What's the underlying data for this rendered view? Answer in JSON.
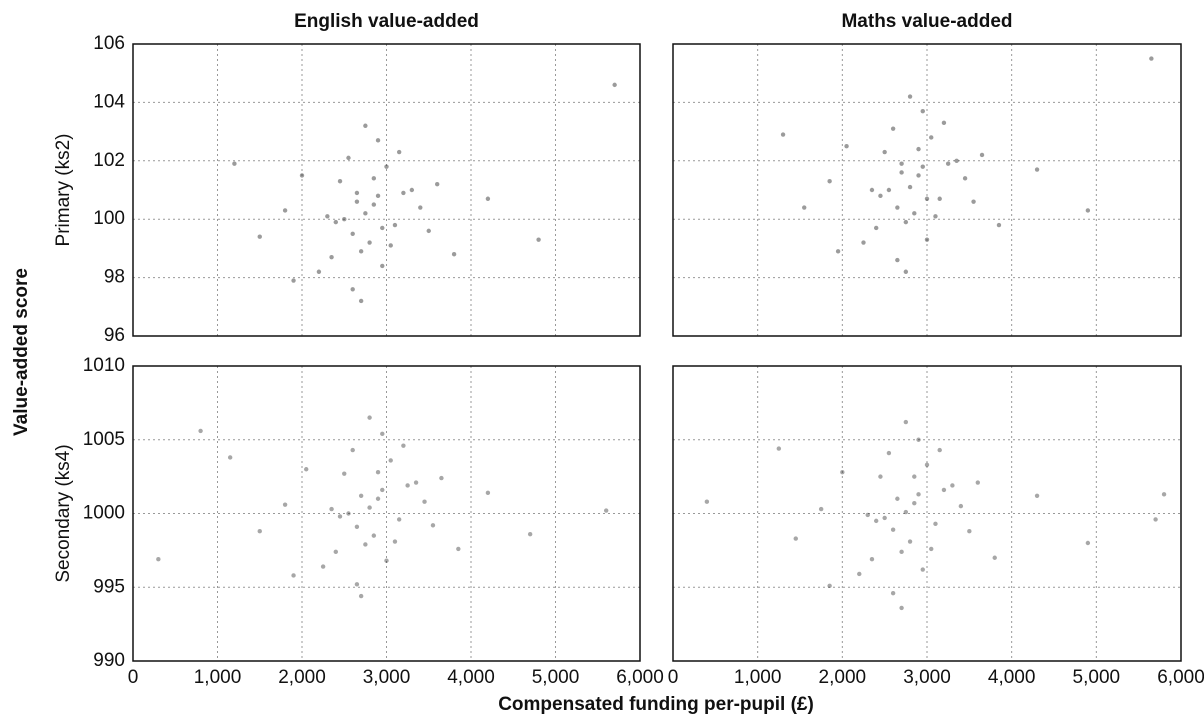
{
  "x_label": "Compensated funding per-pupil (£)",
  "y_label": "Value-added score",
  "chart_data": [
    {
      "type": "scatter",
      "title": "English value-added",
      "ylabel": "Primary (ks2)",
      "color": "#222222",
      "alpha": 0.45,
      "grid": true,
      "xticklabels": false,
      "yticklabels": true,
      "xlim": [
        0,
        6000
      ],
      "ylim": [
        96,
        106
      ],
      "xticks": [
        0,
        1000,
        2000,
        3000,
        4000,
        5000,
        6000
      ],
      "yticks": [
        96,
        98,
        100,
        102,
        104,
        106
      ],
      "x": [
        2750,
        2600,
        2900,
        2450,
        3100,
        2700,
        2850,
        2300,
        3300,
        2550,
        2950,
        2650,
        2800,
        2400,
        3200,
        2000,
        3500,
        1800,
        3800,
        2750,
        2600,
        3000,
        2200,
        3400,
        2900,
        1500,
        4200,
        1200,
        4800,
        5700,
        2700,
        2500,
        3050,
        2350,
        2850,
        3150,
        1900,
        3600,
        2650,
        2950
      ],
      "y": [
        100.2,
        99.5,
        100.8,
        101.3,
        99.8,
        98.9,
        100.5,
        100.1,
        101.0,
        102.1,
        98.4,
        100.6,
        99.2,
        99.9,
        100.9,
        101.5,
        99.6,
        100.3,
        98.8,
        103.2,
        97.6,
        101.8,
        98.2,
        100.4,
        102.7,
        99.4,
        100.7,
        101.9,
        99.3,
        104.6,
        97.2,
        100.0,
        99.1,
        98.7,
        101.4,
        102.3,
        97.9,
        101.2,
        100.9,
        99.7
      ]
    },
    {
      "type": "scatter",
      "title": "Maths value-added",
      "color": "#222222",
      "alpha": 0.45,
      "grid": true,
      "xticklabels": false,
      "yticklabels": false,
      "xlim": [
        0,
        6000
      ],
      "ylim": [
        96,
        106
      ],
      "xticks": [
        0,
        1000,
        2000,
        3000,
        4000,
        5000,
        6000
      ],
      "yticks": [
        96,
        98,
        100,
        102,
        104,
        106
      ],
      "x": [
        2800,
        2650,
        2950,
        2500,
        3150,
        2750,
        2900,
        2350,
        3350,
        2600,
        3000,
        2700,
        2850,
        2450,
        3250,
        2050,
        3550,
        1850,
        3850,
        2800,
        2650,
        3050,
        2250,
        3450,
        2950,
        1550,
        4300,
        1300,
        4900,
        5650,
        2750,
        2550,
        3100,
        2400,
        2900,
        3200,
        1950,
        3650,
        2700,
        3000
      ],
      "y": [
        101.1,
        100.4,
        101.8,
        102.3,
        100.7,
        99.9,
        101.5,
        101.0,
        102.0,
        103.1,
        99.3,
        101.6,
        100.2,
        100.8,
        101.9,
        102.5,
        100.6,
        101.3,
        99.8,
        104.2,
        98.6,
        102.8,
        99.2,
        101.4,
        103.7,
        100.4,
        101.7,
        102.9,
        100.3,
        105.5,
        98.2,
        101.0,
        100.1,
        99.7,
        102.4,
        103.3,
        98.9,
        102.2,
        101.9,
        100.7
      ]
    },
    {
      "type": "scatter",
      "ylabel": "Secondary (ks4)",
      "color": "#222222",
      "alpha": 0.4,
      "grid": true,
      "xticklabels": true,
      "yticklabels": true,
      "xlim": [
        0,
        6000
      ],
      "ylim": [
        990,
        1010
      ],
      "xticks": [
        0,
        {
          "value": 1000,
          "label": "1,000"
        },
        {
          "value": 2000,
          "label": "2,000"
        },
        {
          "value": 3000,
          "label": "3,000"
        },
        {
          "value": 4000,
          "label": "4,000"
        },
        {
          "value": 5000,
          "label": "5,000"
        },
        {
          "value": 6000,
          "label": "6,000"
        }
      ],
      "yticks": [
        990,
        995,
        1000,
        1005,
        1010
      ],
      "x": [
        2800,
        2650,
        2950,
        2500,
        3150,
        2750,
        2900,
        2350,
        3350,
        2600,
        3000,
        2700,
        2850,
        2450,
        3250,
        2050,
        3550,
        1800,
        3850,
        2800,
        2650,
        3050,
        2250,
        3450,
        2950,
        1500,
        4200,
        1150,
        4700,
        5600,
        2700,
        2550,
        3100,
        2400,
        2900,
        3200,
        1900,
        3650,
        300,
        800
      ],
      "y": [
        1000.4,
        999.1,
        1001.6,
        1002.7,
        999.6,
        997.9,
        1001.0,
        1000.3,
        1002.1,
        1004.3,
        996.8,
        1001.2,
        998.5,
        999.8,
        1001.9,
        1003.0,
        999.2,
        1000.6,
        997.6,
        1006.5,
        995.2,
        1003.6,
        996.4,
        1000.8,
        1005.4,
        998.8,
        1001.4,
        1003.8,
        998.6,
        1000.2,
        994.4,
        1000.0,
        998.1,
        997.4,
        1002.8,
        1004.6,
        995.8,
        1002.4,
        996.9,
        1005.6
      ]
    },
    {
      "type": "scatter",
      "color": "#222222",
      "alpha": 0.4,
      "grid": true,
      "xticklabels": true,
      "yticklabels": false,
      "xlim": [
        0,
        6000
      ],
      "ylim": [
        990,
        1010
      ],
      "xticks": [
        0,
        {
          "value": 1000,
          "label": "1,000"
        },
        {
          "value": 2000,
          "label": "2,000"
        },
        {
          "value": 3000,
          "label": "3,000"
        },
        {
          "value": 4000,
          "label": "4,000"
        },
        {
          "value": 5000,
          "label": "5,000"
        },
        {
          "value": 6000,
          "label": "6,000"
        }
      ],
      "yticks": [
        990,
        995,
        1000,
        1005,
        1010
      ],
      "x": [
        2750,
        2600,
        2900,
        2450,
        3100,
        2700,
        2850,
        2300,
        3300,
        2550,
        2950,
        2650,
        2800,
        2400,
        3200,
        2000,
        3500,
        1750,
        3800,
        2750,
        2600,
        3000,
        2200,
        3400,
        2900,
        1450,
        4300,
        1250,
        4900,
        5700,
        2700,
        2500,
        3050,
        2350,
        2850,
        3150,
        1850,
        3600,
        400,
        5800
      ],
      "y": [
        1000.1,
        998.9,
        1001.3,
        1002.5,
        999.3,
        997.4,
        1000.7,
        999.9,
        1001.9,
        1004.1,
        996.2,
        1001.0,
        998.1,
        999.5,
        1001.6,
        1002.8,
        998.8,
        1000.3,
        997.0,
        1006.2,
        994.6,
        1003.3,
        995.9,
        1000.5,
        1005.0,
        998.3,
        1001.2,
        1004.4,
        998.0,
        999.6,
        993.6,
        999.7,
        997.6,
        996.9,
        1002.5,
        1004.3,
        995.1,
        1002.1,
        1000.8,
        1001.3
      ]
    }
  ]
}
